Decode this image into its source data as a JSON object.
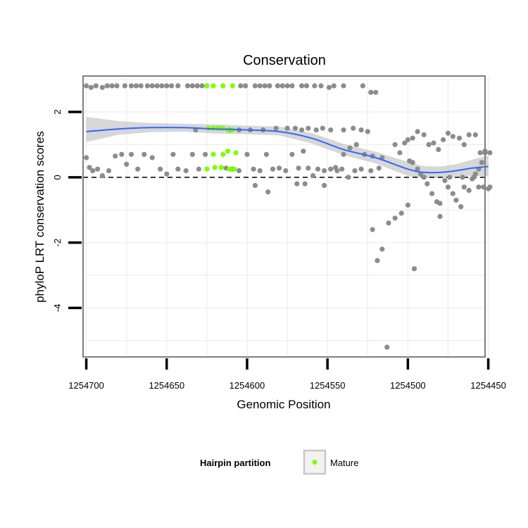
{
  "chart_data": {
    "type": "scatter",
    "title": "Conservation",
    "xlabel": "Genomic Position",
    "ylabel": "phyloP LRT conservation scores",
    "x_reversed": true,
    "xlim": [
      1254702,
      1254452
    ],
    "ylim": [
      -5.5,
      3.1
    ],
    "x_ticks": [
      1254700,
      1254650,
      1254600,
      1254550,
      1254500,
      1254450
    ],
    "x_tick_labels": [
      "1254700",
      "1254650",
      "1254600",
      "1254550",
      "1254500",
      "1254450"
    ],
    "y_ticks": [
      2,
      0,
      -2,
      -4
    ],
    "y_tick_labels": [
      "2",
      "0",
      "-2",
      "-4"
    ],
    "reference_line": {
      "y": 0,
      "style": "dashed"
    },
    "colors": {
      "other": "#8c8c8c",
      "mature": "#7fff00",
      "smooth": "#3366ff",
      "ribbon": "#bdbdbd",
      "panel_border": "#7f7f7f",
      "grid": "#f0f0f0"
    },
    "legend": {
      "title": "Hairpin partition",
      "entries": [
        {
          "label": "Mature",
          "color": "#7fff00"
        }
      ],
      "position": "bottom"
    },
    "smooth_line": {
      "x": [
        1254700,
        1254680,
        1254660,
        1254640,
        1254620,
        1254600,
        1254580,
        1254560,
        1254540,
        1254520,
        1254500,
        1254490,
        1254480,
        1254470,
        1254460,
        1254450
      ],
      "y": [
        1.4,
        1.48,
        1.52,
        1.52,
        1.48,
        1.45,
        1.4,
        1.2,
        0.85,
        0.6,
        0.25,
        0.15,
        0.15,
        0.2,
        0.28,
        0.33
      ],
      "ci_low": [
        1.08,
        1.3,
        1.38,
        1.4,
        1.34,
        1.32,
        1.28,
        1.04,
        0.68,
        0.42,
        0.04,
        -0.02,
        -0.02,
        0.02,
        0.04,
        0.03
      ],
      "ci_high": [
        1.85,
        1.72,
        1.66,
        1.64,
        1.62,
        1.58,
        1.55,
        1.36,
        1.02,
        0.78,
        0.47,
        0.34,
        0.33,
        0.4,
        0.54,
        0.67
      ]
    },
    "series": [
      {
        "name": "Other",
        "color": "#8c8c8c",
        "points": [
          [
            1254700,
            2.8
          ],
          [
            1254697,
            2.75
          ],
          [
            1254694,
            2.8
          ],
          [
            1254690,
            2.75
          ],
          [
            1254687,
            2.8
          ],
          [
            1254684,
            2.8
          ],
          [
            1254681,
            2.8
          ],
          [
            1254676,
            2.8
          ],
          [
            1254672,
            2.8
          ],
          [
            1254669,
            2.8
          ],
          [
            1254666,
            2.8
          ],
          [
            1254662,
            2.8
          ],
          [
            1254659,
            2.8
          ],
          [
            1254656,
            2.8
          ],
          [
            1254653,
            2.8
          ],
          [
            1254650,
            2.8
          ],
          [
            1254647,
            2.8
          ],
          [
            1254643,
            2.8
          ],
          [
            1254637,
            2.8
          ],
          [
            1254634,
            2.8
          ],
          [
            1254631,
            2.8
          ],
          [
            1254628,
            2.8
          ],
          [
            1254604,
            2.8
          ],
          [
            1254601,
            2.8
          ],
          [
            1254595,
            2.8
          ],
          [
            1254592,
            2.8
          ],
          [
            1254589,
            2.8
          ],
          [
            1254586,
            2.8
          ],
          [
            1254581,
            2.8
          ],
          [
            1254578,
            2.8
          ],
          [
            1254575,
            2.8
          ],
          [
            1254572,
            2.8
          ],
          [
            1254566,
            2.8
          ],
          [
            1254563,
            2.8
          ],
          [
            1254558,
            2.8
          ],
          [
            1254554,
            2.8
          ],
          [
            1254549,
            2.75
          ],
          [
            1254546,
            2.8
          ],
          [
            1254540,
            2.8
          ],
          [
            1254528,
            2.8
          ],
          [
            1254523,
            2.6
          ],
          [
            1254520,
            2.6
          ],
          [
            1254700,
            0.6
          ],
          [
            1254698,
            0.3
          ],
          [
            1254696,
            0.2
          ],
          [
            1254693,
            0.25
          ],
          [
            1254690,
            0.05
          ],
          [
            1254686,
            0.2
          ],
          [
            1254682,
            0.65
          ],
          [
            1254678,
            0.7
          ],
          [
            1254675,
            0.4
          ],
          [
            1254672,
            0.7
          ],
          [
            1254668,
            0.25
          ],
          [
            1254664,
            0.7
          ],
          [
            1254659,
            0.6
          ],
          [
            1254654,
            0.25
          ],
          [
            1254650,
            0.1
          ],
          [
            1254646,
            0.7
          ],
          [
            1254643,
            0.25
          ],
          [
            1254638,
            0.2
          ],
          [
            1254634,
            0.7
          ],
          [
            1254630,
            0.25
          ],
          [
            1254626,
            0.7
          ],
          [
            1254613,
            0.28
          ],
          [
            1254609,
            0.25
          ],
          [
            1254605,
            0.2
          ],
          [
            1254600,
            0.7
          ],
          [
            1254596,
            0.25
          ],
          [
            1254592,
            0.2
          ],
          [
            1254588,
            0.7
          ],
          [
            1254584,
            0.25
          ],
          [
            1254580,
            0.28
          ],
          [
            1254576,
            0.2
          ],
          [
            1254572,
            0.7
          ],
          [
            1254568,
            0.28
          ],
          [
            1254565,
            0.8
          ],
          [
            1254562,
            0.28
          ],
          [
            1254559,
            0.05
          ],
          [
            1254556,
            0.25
          ],
          [
            1254552,
            0.2
          ],
          [
            1254548,
            0.25
          ],
          [
            1254544,
            0.2
          ],
          [
            1254541,
            0.25
          ],
          [
            1254537,
            0.0
          ],
          [
            1254533,
            0.2
          ],
          [
            1254529,
            0.25
          ],
          [
            1254523,
            0.2
          ],
          [
            1254518,
            0.28
          ],
          [
            1254632,
            1.45
          ],
          [
            1254618,
            1.5
          ],
          [
            1254611,
            1.45
          ],
          [
            1254605,
            1.45
          ],
          [
            1254598,
            1.45
          ],
          [
            1254590,
            1.45
          ],
          [
            1254582,
            1.5
          ],
          [
            1254575,
            1.5
          ],
          [
            1254570,
            1.5
          ],
          [
            1254566,
            1.45
          ],
          [
            1254562,
            1.5
          ],
          [
            1254557,
            1.45
          ],
          [
            1254553,
            1.5
          ],
          [
            1254548,
            1.45
          ],
          [
            1254540,
            1.45
          ],
          [
            1254534,
            1.5
          ],
          [
            1254529,
            1.45
          ],
          [
            1254525,
            1.4
          ],
          [
            1254595,
            -0.25
          ],
          [
            1254587,
            -0.45
          ],
          [
            1254569,
            -0.2
          ],
          [
            1254564,
            -0.2
          ],
          [
            1254552,
            -0.25
          ],
          [
            1254545,
            0.3
          ],
          [
            1254540,
            0.7
          ],
          [
            1254536,
            0.9
          ],
          [
            1254532,
            1.0
          ],
          [
            1254527,
            0.7
          ],
          [
            1254522,
            0.65
          ],
          [
            1254516,
            0.6
          ],
          [
            1254508,
            1.0
          ],
          [
            1254505,
            0.75
          ],
          [
            1254499,
            0.5
          ],
          [
            1254497,
            0.45
          ],
          [
            1254494,
            0.25
          ],
          [
            1254492,
            0.1
          ],
          [
            1254490,
            0.0
          ],
          [
            1254488,
            -0.2
          ],
          [
            1254485,
            -0.5
          ],
          [
            1254482,
            -0.75
          ],
          [
            1254480,
            -0.8
          ],
          [
            1254477,
            -0.1
          ],
          [
            1254475,
            -0.3
          ],
          [
            1254472,
            -0.5
          ],
          [
            1254470,
            -0.7
          ],
          [
            1254467,
            -0.9
          ],
          [
            1254465,
            -0.3
          ],
          [
            1254462,
            -0.4
          ],
          [
            1254460,
            -0.05
          ],
          [
            1254458,
            0.1
          ],
          [
            1254456,
            0.25
          ],
          [
            1254454,
            0.45
          ],
          [
            1254452,
            0.8
          ],
          [
            1254450,
            -0.35
          ],
          [
            1254502,
            1.05
          ],
          [
            1254500,
            1.15
          ],
          [
            1254497,
            1.2
          ],
          [
            1254494,
            1.4
          ],
          [
            1254490,
            1.3
          ],
          [
            1254487,
            1.0
          ],
          [
            1254484,
            1.05
          ],
          [
            1254481,
            0.85
          ],
          [
            1254478,
            1.15
          ],
          [
            1254475,
            1.35
          ],
          [
            1254472,
            1.25
          ],
          [
            1254468,
            1.2
          ],
          [
            1254465,
            1.0
          ],
          [
            1254462,
            1.3
          ],
          [
            1254458,
            1.3
          ],
          [
            1254455,
            0.75
          ],
          [
            1254452,
            0.75
          ],
          [
            1254449,
            0.75
          ],
          [
            1254474,
            0.0
          ],
          [
            1254466,
            0.0
          ],
          [
            1254459,
            0.0
          ],
          [
            1254456,
            -0.3
          ],
          [
            1254453,
            -0.3
          ],
          [
            1254449,
            -0.3
          ],
          [
            1254522,
            -1.6
          ],
          [
            1254519,
            -2.55
          ],
          [
            1254516,
            -2.2
          ],
          [
            1254512,
            -1.4
          ],
          [
            1254508,
            -1.25
          ],
          [
            1254504,
            -1.1
          ],
          [
            1254500,
            -0.85
          ],
          [
            1254496,
            -2.8
          ],
          [
            1254480,
            -1.2
          ],
          [
            1254513,
            -5.2
          ]
        ]
      },
      {
        "name": "Mature",
        "color": "#7fff00",
        "points": [
          [
            1254625,
            2.8
          ],
          [
            1254621,
            2.8
          ],
          [
            1254615,
            2.8
          ],
          [
            1254609,
            2.8
          ],
          [
            1254624,
            1.5
          ],
          [
            1254621,
            1.5
          ],
          [
            1254618,
            1.5
          ],
          [
            1254615,
            1.5
          ],
          [
            1254612,
            1.45
          ],
          [
            1254609,
            1.45
          ],
          [
            1254621,
            0.7
          ],
          [
            1254615,
            0.7
          ],
          [
            1254612,
            0.8
          ],
          [
            1254607,
            0.75
          ],
          [
            1254625,
            0.25
          ],
          [
            1254620,
            0.3
          ],
          [
            1254616,
            0.3
          ],
          [
            1254611,
            0.25
          ],
          [
            1254608,
            0.25
          ]
        ]
      }
    ]
  }
}
